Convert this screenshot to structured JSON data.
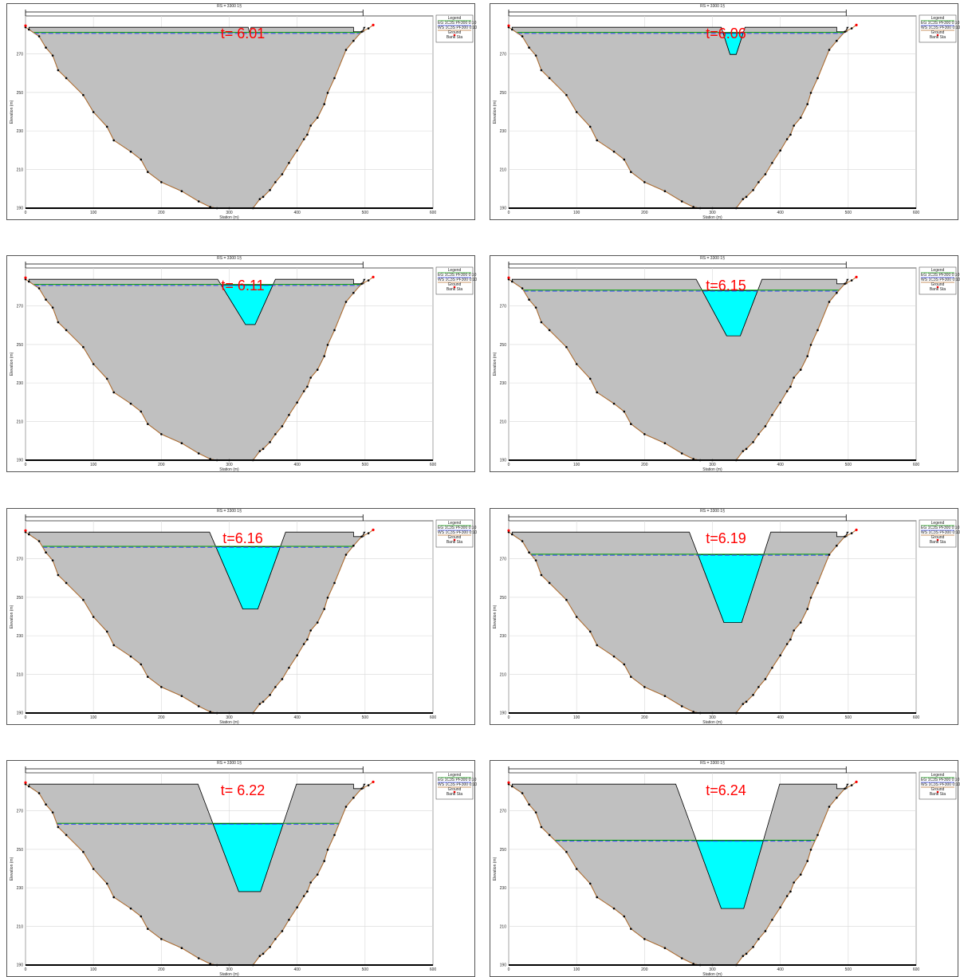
{
  "chart_data": [
    {
      "type": "area",
      "title": "RS = 3300  1§",
      "time_label": "t= 6.01",
      "xlabel": "Station (m)",
      "ylabel": "Elevation (m)",
      "xlim": [
        0,
        600
      ],
      "ylim": [
        190,
        360
      ],
      "x_ticks": [
        "0",
        "100",
        "200",
        "300",
        "400",
        "500",
        "600"
      ],
      "y_ticks": [
        "190",
        "210",
        "230",
        "250",
        "270"
      ],
      "legend": {
        "title": "Legend",
        "items": [
          "EG 1C3S PF300 0:10",
          "WS 1C3S PF300 0:10",
          "Ground",
          "Bank Sta"
        ]
      },
      "water_surface_elevation": 345,
      "breach": {
        "top_left": 328,
        "top_right": 332,
        "bottom_left": 330,
        "bottom_right": 330,
        "top_elevation": 350,
        "bottom_elevation": 345
      }
    },
    {
      "type": "area",
      "title": "RS = 3300  1§",
      "time_label": "t=6.06",
      "xlabel": "Station (m)",
      "ylabel": "Elevation (m)",
      "xlim": [
        0,
        600
      ],
      "ylim": [
        190,
        360
      ],
      "x_ticks": [
        "0",
        "100",
        "200",
        "300",
        "400",
        "500",
        "600"
      ],
      "y_ticks": [
        "190",
        "210",
        "230",
        "250",
        "270"
      ],
      "legend": {
        "title": "Legend",
        "items": [
          "EG 1C3S PF300 0:10",
          "WS 1C3S PF300 0:10",
          "Ground",
          "Bank Sta"
        ]
      },
      "water_surface_elevation": 345,
      "breach": {
        "top_left": 313,
        "top_right": 348,
        "bottom_left": 326,
        "bottom_right": 335,
        "top_elevation": 350,
        "bottom_elevation": 326
      }
    },
    {
      "type": "area",
      "title": "RS = 3300  1§",
      "time_label": "t= 6.11",
      "xlabel": "Station (m)",
      "ylabel": "Elevation (m)",
      "xlim": [
        0,
        600
      ],
      "ylim": [
        190,
        360
      ],
      "x_ticks": [
        "0",
        "100",
        "200",
        "300",
        "400",
        "500",
        "600"
      ],
      "y_ticks": [
        "190",
        "210",
        "230",
        "250",
        "270"
      ],
      "legend": {
        "title": "Legend",
        "items": [
          "EG 1C3S PF300 0:10",
          "WS 1C3S PF300 0:10",
          "Ground",
          "Bank Sta"
        ]
      },
      "water_surface_elevation": 345,
      "breach": {
        "top_left": 283,
        "top_right": 368,
        "bottom_left": 324,
        "bottom_right": 338,
        "top_elevation": 350,
        "bottom_elevation": 310
      }
    },
    {
      "type": "area",
      "title": "RS = 3300  1§",
      "time_label": "t=6.15",
      "xlabel": "Station (m)",
      "ylabel": "Elevation (m)",
      "xlim": [
        0,
        600
      ],
      "ylim": [
        190,
        360
      ],
      "x_ticks": [
        "0",
        "100",
        "200",
        "300",
        "400",
        "500",
        "600"
      ],
      "y_ticks": [
        "190",
        "210",
        "230",
        "250",
        "270"
      ],
      "legend": {
        "title": "Legend",
        "items": [
          "EG 1C3S PF300 0:10",
          "WS 1C3S PF300 0:10",
          "Ground",
          "Bank Sta"
        ]
      },
      "water_surface_elevation": 340,
      "breach": {
        "top_left": 276,
        "top_right": 373,
        "bottom_left": 321,
        "bottom_right": 341,
        "top_elevation": 350,
        "bottom_elevation": 300
      }
    },
    {
      "type": "area",
      "title": "RS = 3300  1§",
      "time_label": "t=6.16",
      "xlabel": "Station (m)",
      "ylabel": "Elevation (m)",
      "xlim": [
        0,
        600
      ],
      "ylim": [
        190,
        360
      ],
      "x_ticks": [
        "0",
        "100",
        "200",
        "300",
        "400",
        "500",
        "600"
      ],
      "y_ticks": [
        "190",
        "210",
        "230",
        "250",
        "270"
      ],
      "legend": {
        "title": "Legend",
        "items": [
          "EG 1C3S PF300 0:10",
          "WS 1C3S PF300 0:10",
          "Ground",
          "Bank Sta"
        ]
      },
      "water_surface_elevation": 337,
      "breach": {
        "top_left": 271,
        "top_right": 383,
        "bottom_left": 320,
        "bottom_right": 342,
        "top_elevation": 350,
        "bottom_elevation": 282
      }
    },
    {
      "type": "area",
      "title": "RS = 3300  1§",
      "time_label": "t=6.19",
      "xlabel": "Station (m)",
      "ylabel": "Elevation (m)",
      "xlim": [
        0,
        600
      ],
      "ylim": [
        190,
        360
      ],
      "x_ticks": [
        "0",
        "100",
        "200",
        "300",
        "400",
        "500",
        "600"
      ],
      "y_ticks": [
        "190",
        "210",
        "230",
        "250",
        "270"
      ],
      "legend": {
        "title": "Legend",
        "items": [
          "EG 1C3S PF300 0:10",
          "WS 1C3S PF300 0:10",
          "Ground",
          "Bank Sta"
        ]
      },
      "water_surface_elevation": 330,
      "breach": {
        "top_left": 266,
        "top_right": 386,
        "bottom_left": 317,
        "bottom_right": 343,
        "top_elevation": 350,
        "bottom_elevation": 270
      }
    },
    {
      "type": "area",
      "title": "RS = 3300  1§",
      "time_label": "t= 6.22",
      "xlabel": "Station (m)",
      "ylabel": "Elevation (m)",
      "xlim": [
        0,
        600
      ],
      "ylim": [
        190,
        360
      ],
      "x_ticks": [
        "0",
        "100",
        "200",
        "300",
        "400",
        "500",
        "600"
      ],
      "y_ticks": [
        "190",
        "210",
        "230",
        "250",
        "270"
      ],
      "legend": {
        "title": "Legend",
        "items": [
          "EG 1C3S PF300 0:10",
          "WS 1C3S PF300 0:10",
          "Ground",
          "Bank Sta"
        ]
      },
      "water_surface_elevation": 315,
      "breach": {
        "top_left": 254,
        "top_right": 399,
        "bottom_left": 314,
        "bottom_right": 346,
        "top_elevation": 350,
        "bottom_elevation": 255
      }
    },
    {
      "type": "area",
      "title": "RS = 3300  1§",
      "time_label": "t=6.24",
      "xlabel": "Station (m)",
      "ylabel": "Elevation (m)",
      "xlim": [
        0,
        600
      ],
      "ylim": [
        190,
        360
      ],
      "x_ticks": [
        "0",
        "100",
        "200",
        "300",
        "400",
        "500",
        "600"
      ],
      "y_ticks": [
        "190",
        "210",
        "230",
        "250",
        "270"
      ],
      "legend": {
        "title": "Legend",
        "items": [
          "EG 1C3S PF300 0:10",
          "WS 1C3S PF300 0:10",
          "Ground",
          "Bank Sta"
        ]
      },
      "water_surface_elevation": 300,
      "breach": {
        "top_left": 246,
        "top_right": 399,
        "bottom_left": 313,
        "bottom_right": 346,
        "top_elevation": 350,
        "bottom_elevation": 240
      }
    }
  ],
  "ground_profile": {
    "x": [
      0,
      5,
      20,
      30,
      40,
      48,
      60,
      85,
      100,
      120,
      130,
      155,
      170,
      180,
      200,
      230,
      255,
      272,
      282,
      300,
      335,
      345,
      350,
      360,
      368,
      378,
      388,
      400,
      410,
      415,
      420,
      430,
      440,
      445,
      455,
      472,
      483,
      495,
      505,
      512
    ],
    "y": [
      350,
      348,
      342,
      332,
      325,
      312,
      305,
      290,
      275,
      262,
      250,
      240,
      233,
      222,
      213,
      205,
      196,
      191,
      190,
      190,
      190,
      198,
      200,
      206,
      213,
      220,
      230,
      241,
      251,
      255,
      263,
      270,
      282,
      292,
      305,
      330,
      338,
      346,
      349,
      352
    ]
  },
  "dam": {
    "left_x": 5,
    "right_x": 482,
    "crest_elevation": 350,
    "notch_left": 483,
    "notch_right": 498,
    "notch_elevation": 346
  },
  "colors": {
    "dam_fill": "#c0c0c0",
    "water_fill": "#00ffff",
    "ground_line": "#b87333",
    "ws_line": "#3344ff",
    "eg_line": "#00a000",
    "time_label": "#ff0000"
  }
}
